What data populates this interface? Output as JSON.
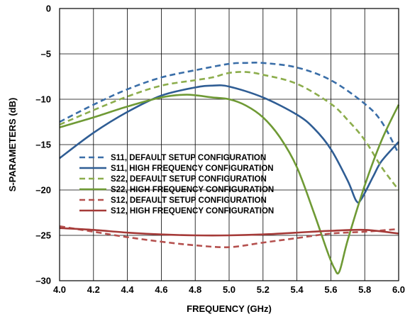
{
  "chart_data": {
    "type": "line",
    "title": "",
    "xlabel": "FREQUENCY (GHz)",
    "ylabel": "S-PARAMETERS (dB)",
    "xlim": [
      4.0,
      6.0
    ],
    "ylim": [
      -30,
      0
    ],
    "xticks": [
      "4.0",
      "4.2",
      "4.4",
      "4.6",
      "4.8",
      "5.0",
      "5.2",
      "5.4",
      "5.6",
      "5.8",
      "6.0"
    ],
    "yticks": [
      "0",
      "–5",
      "–10",
      "–15",
      "–20",
      "–25",
      "–30"
    ],
    "grid": true,
    "legend_position": "center-left",
    "series": [
      {
        "name": "S11, DEFAULT SETUP CONFIGURATION",
        "color": "#3a6ea8",
        "dash": true,
        "x": [
          4.0,
          4.2,
          4.4,
          4.6,
          4.8,
          5.0,
          5.1,
          5.2,
          5.4,
          5.6,
          5.8,
          5.9,
          6.0
        ],
        "y": [
          -12.5,
          -10.6,
          -8.9,
          -7.6,
          -6.8,
          -6.1,
          -6.0,
          -6.0,
          -6.5,
          -7.9,
          -10.5,
          -12.5,
          -16.0
        ]
      },
      {
        "name": "S11, HIGH FREQUENCY CONFIGURATION",
        "color": "#2f5d94",
        "dash": false,
        "x": [
          4.0,
          4.2,
          4.4,
          4.6,
          4.8,
          4.9,
          5.0,
          5.2,
          5.4,
          5.5,
          5.6,
          5.7,
          5.75,
          5.78,
          5.85,
          5.9,
          6.0
        ],
        "y": [
          -16.5,
          -13.7,
          -11.4,
          -9.6,
          -8.7,
          -8.5,
          -8.6,
          -9.8,
          -11.7,
          -13.2,
          -15.5,
          -19.0,
          -21.2,
          -21.0,
          -18.5,
          -16.8,
          -14.7
        ]
      },
      {
        "name": "S22, DEFAULT SETUP CONFIGURATION",
        "color": "#8cad4c",
        "dash": true,
        "x": [
          4.0,
          4.2,
          4.4,
          4.6,
          4.8,
          4.9,
          5.0,
          5.1,
          5.2,
          5.4,
          5.6,
          5.7,
          5.8,
          5.9,
          6.0
        ],
        "y": [
          -12.8,
          -11.2,
          -9.7,
          -8.5,
          -7.9,
          -7.6,
          -7.1,
          -7.0,
          -7.3,
          -8.3,
          -10.5,
          -12.3,
          -14.5,
          -17.5,
          -20.0
        ]
      },
      {
        "name": "S22, HIGH FREQUENCY CONFIGURATION",
        "color": "#6f9a35",
        "dash": false,
        "x": [
          4.0,
          4.2,
          4.4,
          4.6,
          4.75,
          4.9,
          5.0,
          5.1,
          5.2,
          5.3,
          5.4,
          5.5,
          5.58,
          5.62,
          5.65,
          5.7,
          5.8,
          5.9,
          6.0
        ],
        "y": [
          -13.1,
          -12.0,
          -10.8,
          -9.8,
          -9.5,
          -9.8,
          -10.0,
          -10.7,
          -12.0,
          -14.2,
          -17.5,
          -22.5,
          -26.8,
          -28.6,
          -29.0,
          -25.5,
          -19.5,
          -14.5,
          -10.6
        ]
      },
      {
        "name": "S12, DEFAULT SETUP CONFIGURATION",
        "color": "#b5514f",
        "dash": true,
        "x": [
          4.0,
          4.2,
          4.4,
          4.6,
          4.8,
          5.0,
          5.2,
          5.4,
          5.6,
          5.8,
          6.0
        ],
        "y": [
          -24.0,
          -24.6,
          -25.2,
          -25.7,
          -26.1,
          -26.3,
          -25.8,
          -25.3,
          -24.8,
          -24.6,
          -24.3
        ]
      },
      {
        "name": "S12, HIGH FREQUENCY CONFIGURATION",
        "color": "#a53a38",
        "dash": false,
        "x": [
          4.0,
          4.2,
          4.4,
          4.6,
          4.8,
          5.0,
          5.2,
          5.4,
          5.6,
          5.8,
          6.0
        ],
        "y": [
          -24.2,
          -24.4,
          -24.7,
          -24.9,
          -25.0,
          -25.0,
          -24.9,
          -24.7,
          -24.5,
          -24.4,
          -24.8
        ]
      }
    ]
  }
}
